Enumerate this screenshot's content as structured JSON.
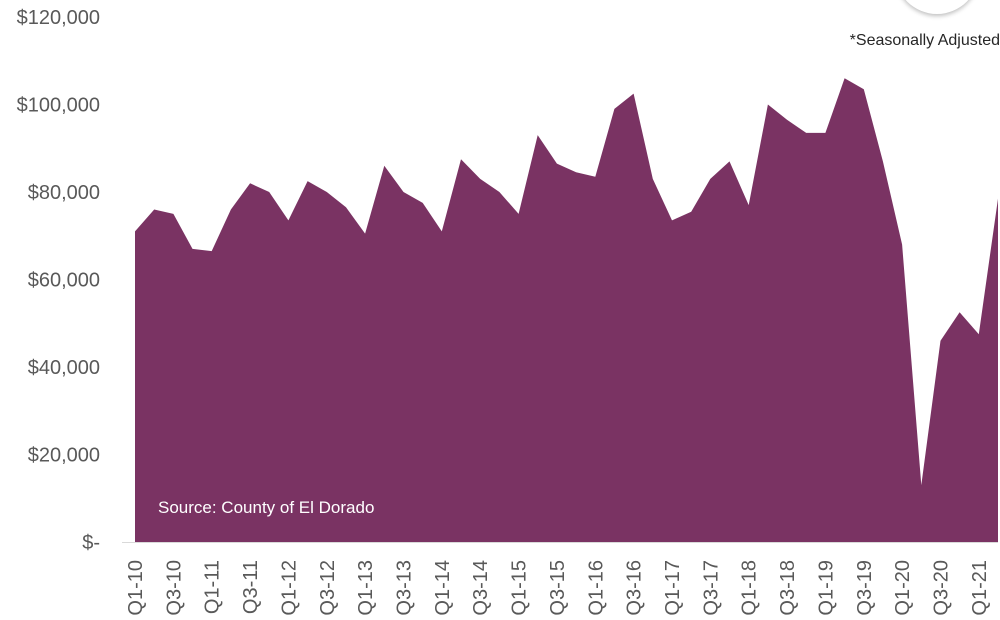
{
  "colors": {
    "area": "#7a3363",
    "axis": "#d9d9d9",
    "text": "#595959"
  },
  "annotations": {
    "seasonal_note": "*Seasonally Adjusted",
    "source": "Source: County of El Dorado"
  },
  "chart_data": {
    "type": "area",
    "title": "",
    "xlabel": "",
    "ylabel": "",
    "ylim": [
      0,
      120000
    ],
    "y_ticks": [
      0,
      20000,
      40000,
      60000,
      80000,
      100000,
      120000
    ],
    "y_tick_labels": [
      "$-",
      "$20,000",
      "$40,000",
      "$60,000",
      "$80,000",
      "$100,000",
      "$120,000"
    ],
    "x_tick_labels": [
      "Q1-10",
      "Q3-10",
      "Q1-11",
      "Q3-11",
      "Q1-12",
      "Q3-12",
      "Q1-13",
      "Q3-13",
      "Q1-14",
      "Q3-14",
      "Q1-15",
      "Q3-15",
      "Q1-16",
      "Q3-16",
      "Q1-17",
      "Q3-17",
      "Q1-18",
      "Q3-18",
      "Q1-19",
      "Q3-19",
      "Q1-20",
      "Q3-20",
      "Q1-21"
    ],
    "grid": false,
    "legend": "none",
    "series": [
      {
        "categories": [
          "Q1-10",
          "Q2-10",
          "Q3-10",
          "Q4-10",
          "Q1-11",
          "Q2-11",
          "Q3-11",
          "Q4-11",
          "Q1-12",
          "Q2-12",
          "Q3-12",
          "Q4-12",
          "Q1-13",
          "Q2-13",
          "Q3-13",
          "Q4-13",
          "Q1-14",
          "Q2-14",
          "Q3-14",
          "Q4-14",
          "Q1-15",
          "Q2-15",
          "Q3-15",
          "Q4-15",
          "Q1-16",
          "Q2-16",
          "Q3-16",
          "Q4-16",
          "Q1-17",
          "Q2-17",
          "Q3-17",
          "Q4-17",
          "Q1-18",
          "Q2-18",
          "Q3-18",
          "Q4-18",
          "Q1-19",
          "Q2-19",
          "Q3-19",
          "Q4-19",
          "Q1-20",
          "Q2-20",
          "Q3-20",
          "Q4-20",
          "Q1-21",
          "Q2-21"
        ],
        "values": [
          71000,
          76000,
          75000,
          67000,
          66500,
          76000,
          82000,
          80000,
          73500,
          82500,
          80000,
          76500,
          70500,
          86000,
          80000,
          77500,
          71000,
          87500,
          83000,
          80000,
          75000,
          93000,
          86500,
          84500,
          83500,
          99000,
          102500,
          83000,
          73500,
          75500,
          83000,
          87000,
          77000,
          100000,
          96500,
          93500,
          93500,
          106000,
          103500,
          87000,
          68000,
          13000,
          46000,
          52500,
          47500,
          78500
        ]
      }
    ]
  }
}
